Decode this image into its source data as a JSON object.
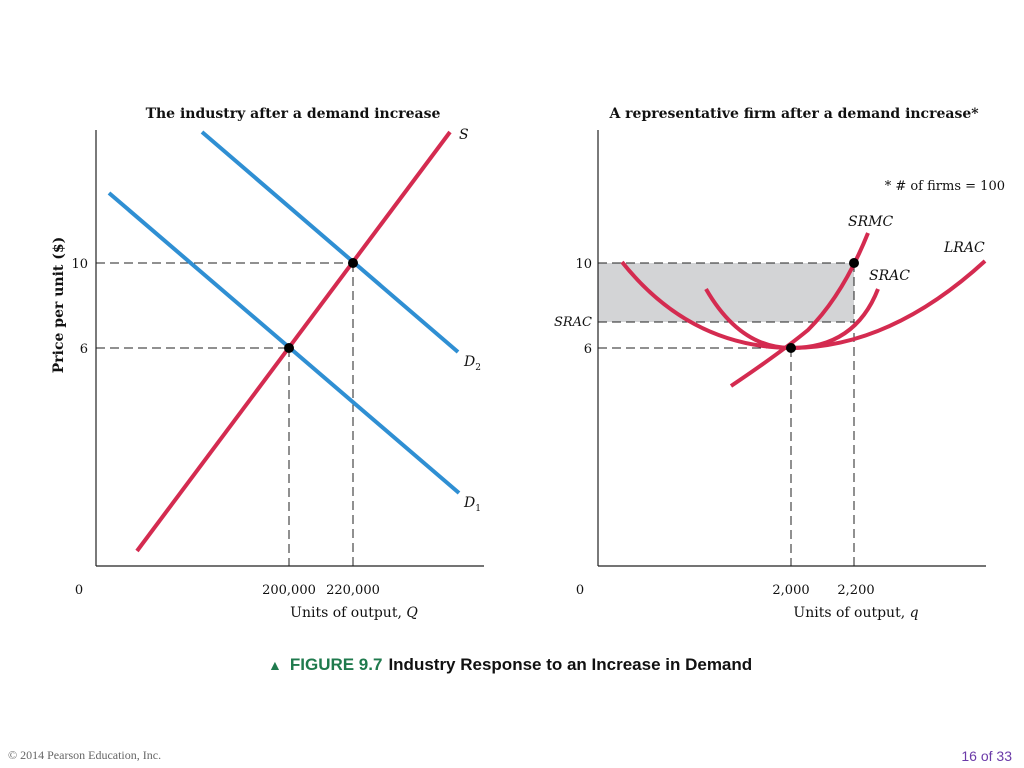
{
  "left_panel": {
    "title": "The industry after a demand increase",
    "ylabel": "Price per unit ($)",
    "xlabel_text": "Units of output, ",
    "xlabel_var": "Q",
    "origin": "0",
    "price_ticks": [
      "10",
      "6"
    ],
    "quantity_ticks": [
      "200,000",
      "220,000"
    ],
    "supply_label": "S",
    "demand1_label": "D",
    "demand1_sub": "1",
    "demand2_label": "D",
    "demand2_sub": "2"
  },
  "right_panel": {
    "title": "A representative firm after a demand increase*",
    "note": "* # of firms = 100",
    "xlabel_text": "Units of output, ",
    "xlabel_var": "q",
    "origin": "0",
    "price_ticks": [
      "10",
      "6"
    ],
    "srac_tick": "SRAC",
    "quantity_ticks": [
      "2,000",
      "2,200"
    ],
    "srmc_label": "SRMC",
    "lrac_label": "LRAC",
    "srac_label": "SRAC"
  },
  "caption": {
    "marker": "▲",
    "figure_number": "FIGURE 9.7",
    "title": "Industry Response to an Increase in Demand"
  },
  "footer": {
    "copyright": "© 2014 Pearson Education, Inc.",
    "page": "16 of 33"
  },
  "colors": {
    "supply": "#d42b50",
    "demand": "#2f8fd3",
    "cost_curves": "#d42b50",
    "profit_area": "#d3d4d6",
    "axes": "#222222",
    "caption_accent": "#1f7a4d",
    "page_number": "#6b3aa8"
  }
}
